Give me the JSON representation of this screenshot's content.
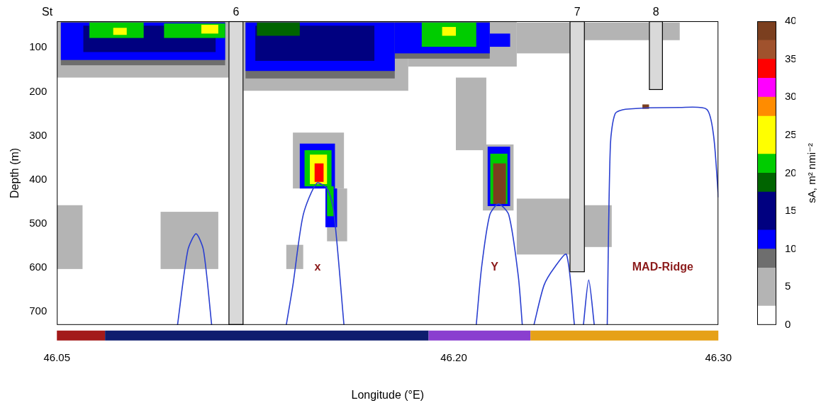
{
  "chart_data": {
    "type": "heatmap",
    "x_label": "Longitude (°E)",
    "y_label": "Depth (m)",
    "xlim": [
      46.05,
      46.3
    ],
    "xticks": [
      46.05,
      {
        "value": 46.2,
        "label": "46.20"
      },
      {
        "value": 46.3,
        "label": "46.30"
      }
    ],
    "ylim": [
      40,
      730
    ],
    "yticks": [
      100,
      200,
      300,
      400,
      500,
      600,
      700
    ],
    "grid": false,
    "colorbar": {
      "title": "sA, m² nmi⁻²",
      "range": [
        0,
        40
      ],
      "ticks": [
        0,
        5,
        10,
        15,
        20,
        25,
        30,
        35,
        40
      ],
      "bins": [
        0,
        2.5,
        7.5,
        10,
        12.5,
        17.5,
        20,
        22.5,
        27.5,
        30,
        32.5,
        35,
        37.5,
        40
      ],
      "colors": [
        "#ffffff",
        "#b4b4b4",
        "#6e6e6e",
        "#0000ff",
        "#000080",
        "#006400",
        "#00cc00",
        "#ffff00",
        "#ff8c00",
        "#ff00ff",
        "#ff0000",
        "#a0522d",
        "#7b3f1f"
      ]
    },
    "cells": [
      {
        "lon": [
          46.05,
          46.1149
        ],
        "depth": [
          40,
          168
        ],
        "value": 5
      },
      {
        "lon": [
          46.1205,
          46.1828
        ],
        "depth": [
          40,
          198
        ],
        "value": 5
      },
      {
        "lon": [
          46.1828,
          46.2238
        ],
        "depth": [
          40,
          143
        ],
        "value": 5
      },
      {
        "lon": [
          46.2238,
          46.2495
        ],
        "depth": [
          43,
          113
        ],
        "value": 4
      },
      {
        "lon": [
          46.2495,
          46.2854
        ],
        "depth": [
          43,
          83
        ],
        "value": 4
      },
      {
        "lon": [
          46.0515,
          46.1136
        ],
        "depth": [
          40,
          140
        ],
        "value": 8
      },
      {
        "lon": [
          46.1213,
          46.1777
        ],
        "depth": [
          40,
          170
        ],
        "value": 8
      },
      {
        "lon": [
          46.1777,
          46.2136
        ],
        "depth": [
          40,
          125
        ],
        "value": 8
      },
      {
        "lon": [
          46.0515,
          46.1136
        ],
        "depth": [
          43,
          128
        ],
        "value": 12
      },
      {
        "lon": [
          46.1213,
          46.1777
        ],
        "depth": [
          43,
          153
        ],
        "value": 12
      },
      {
        "lon": [
          46.1777,
          46.2136
        ],
        "depth": [
          43,
          113
        ],
        "value": 12
      },
      {
        "lon": [
          46.2136,
          46.2213
        ],
        "depth": [
          68,
          98
        ],
        "value": 11
      },
      {
        "lon": [
          46.06,
          46.11
        ],
        "depth": [
          50,
          110
        ],
        "value": 15
      },
      {
        "lon": [
          46.125,
          46.17
        ],
        "depth": [
          50,
          130
        ],
        "value": 15
      },
      {
        "lon": [
          46.0623,
          46.0828
        ],
        "depth": [
          43,
          78
        ],
        "value": 21
      },
      {
        "lon": [
          46.0905,
          46.1136
        ],
        "depth": [
          45,
          78
        ],
        "value": 21
      },
      {
        "lon": [
          46.1256,
          46.1418
        ],
        "depth": [
          43,
          73
        ],
        "value": 19
      },
      {
        "lon": [
          46.1879,
          46.2085
        ],
        "depth": [
          43,
          98
        ],
        "value": 21
      },
      {
        "lon": [
          46.0713,
          46.0764
        ],
        "depth": [
          55,
          71
        ],
        "value": 25
      },
      {
        "lon": [
          46.1046,
          46.111
        ],
        "depth": [
          48,
          68
        ],
        "value": 24
      },
      {
        "lon": [
          46.1956,
          46.2008
        ],
        "depth": [
          53,
          73
        ],
        "value": 25
      },
      {
        "lon": [
          46.05,
          46.0597
        ],
        "depth": [
          458,
          603
        ],
        "value": 4
      },
      {
        "lon": [
          46.0892,
          46.111
        ],
        "depth": [
          473,
          603
        ],
        "value": 4
      },
      {
        "lon": [
          46.1367,
          46.1431
        ],
        "depth": [
          548,
          603
        ],
        "value": 5
      },
      {
        "lon": [
          46.1392,
          46.1585
        ],
        "depth": [
          293,
          420
        ],
        "value": 5
      },
      {
        "lon": [
          46.1521,
          46.1597
        ],
        "depth": [
          420,
          540
        ],
        "value": 5
      },
      {
        "lon": [
          46.1418,
          46.1551
        ],
        "depth": [
          318,
          420
        ],
        "value": 12
      },
      {
        "lon": [
          46.1515,
          46.1559
        ],
        "depth": [
          420,
          508
        ],
        "value": 12
      },
      {
        "lon": [
          46.1436,
          46.1538
        ],
        "depth": [
          333,
          415
        ],
        "value": 21
      },
      {
        "lon": [
          46.1521,
          46.1546
        ],
        "depth": [
          415,
          483
        ],
        "value": 21
      },
      {
        "lon": [
          46.1456,
          46.1521
        ],
        "depth": [
          343,
          410
        ],
        "value": 26
      },
      {
        "lon": [
          46.1474,
          46.1508
        ],
        "depth": [
          363,
          405
        ],
        "value": 33
      },
      {
        "lon": [
          46.2008,
          46.2123
        ],
        "depth": [
          168,
          333
        ],
        "value": 4
      },
      {
        "lon": [
          46.211,
          46.2226
        ],
        "depth": [
          320,
          470
        ],
        "value": 5
      },
      {
        "lon": [
          46.2238,
          46.2438
        ],
        "depth": [
          443,
          570
        ],
        "value": 5
      },
      {
        "lon": [
          46.2495,
          46.2597
        ],
        "depth": [
          458,
          553
        ],
        "value": 5
      },
      {
        "lon": [
          46.2128,
          46.2213
        ],
        "depth": [
          325,
          460
        ],
        "value": 12
      },
      {
        "lon": [
          46.2138,
          46.2203
        ],
        "depth": [
          341,
          455
        ],
        "value": 21
      },
      {
        "lon": [
          46.2149,
          46.2197
        ],
        "depth": [
          363,
          455
        ],
        "value": 40
      },
      {
        "lon": [
          46.2713,
          46.2738
        ],
        "depth": [
          229,
          239
        ],
        "value": 38
      }
    ],
    "seafloor": {
      "color": "#2a3fd0",
      "lines": [
        [
          [
            46.0956,
            730
          ],
          [
            46.0995,
            560
          ],
          [
            46.1026,
            523
          ],
          [
            46.1054,
            560
          ],
          [
            46.1085,
            730
          ]
        ],
        [
          [
            46.1367,
            730
          ],
          [
            46.1392,
            640
          ],
          [
            46.1431,
            480
          ],
          [
            46.1482,
            408
          ],
          [
            46.1521,
            420
          ],
          [
            46.1546,
            470
          ],
          [
            46.1585,
            730
          ]
        ],
        [
          [
            46.2085,
            730
          ],
          [
            46.2105,
            600
          ],
          [
            46.2136,
            480
          ],
          [
            46.2169,
            455
          ],
          [
            46.2208,
            480
          ],
          [
            46.2244,
            620
          ],
          [
            46.2259,
            730
          ]
        ],
        [
          [
            46.2303,
            730
          ],
          [
            46.2341,
            640
          ],
          [
            46.238,
            600
          ],
          [
            46.2426,
            570
          ],
          [
            46.2456,
            730
          ]
        ],
        [
          [
            46.249,
            730
          ],
          [
            46.251,
            628
          ],
          [
            46.2531,
            730
          ]
        ],
        [
          [
            46.258,
            730
          ],
          [
            46.2592,
            320
          ],
          [
            46.261,
            250
          ],
          [
            46.2649,
            240
          ],
          [
            46.2854,
            236
          ],
          [
            46.2956,
            240
          ],
          [
            46.2982,
            300
          ],
          [
            46.3,
            440
          ]
        ]
      ]
    },
    "stations": {
      "label": "St",
      "items": [
        {
          "name": "6",
          "lon": [
            46.1149,
            46.1205
          ],
          "depth": [
            40,
            730
          ]
        },
        {
          "name": "7",
          "lon": [
            46.2438,
            46.2495
          ],
          "depth": [
            40,
            610
          ]
        },
        {
          "name": "8",
          "lon": [
            46.2738,
            46.279
          ],
          "depth": [
            40,
            196
          ]
        }
      ]
    },
    "annotations": [
      {
        "text": "x",
        "lon": 46.1485,
        "depth": 600,
        "color": "#8b1a1a"
      },
      {
        "text": "Y",
        "lon": 46.2154,
        "depth": 600,
        "color": "#8b1a1a"
      },
      {
        "text": "MAD-Ridge",
        "lon": 46.279,
        "depth": 600,
        "color": "#8b1a1a"
      }
    ],
    "zones": [
      {
        "lon": [
          46.05,
          46.0682
        ],
        "color": "#a31a1a"
      },
      {
        "lon": [
          46.0682,
          46.1905
        ],
        "color": "#0f1d6e"
      },
      {
        "lon": [
          46.1905,
          46.229
        ],
        "color": "#8a3fcf"
      },
      {
        "lon": [
          46.229,
          46.3
        ],
        "color": "#e6a117"
      }
    ]
  }
}
